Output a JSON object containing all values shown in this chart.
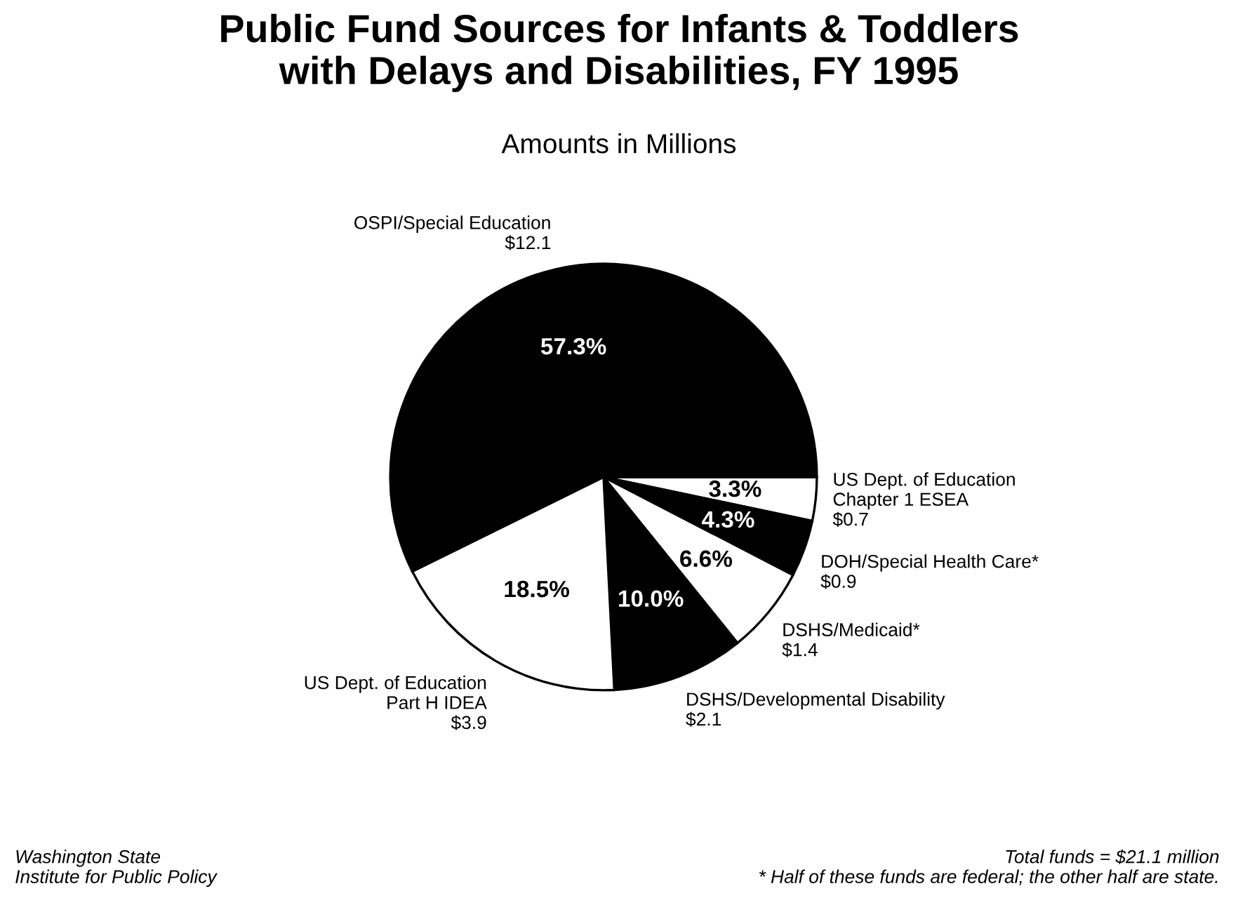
{
  "chart_data": {
    "type": "pie",
    "title": "Public Fund Sources for Infants & Toddlers\nwith Delays and Disabilities, FY 1995",
    "subtitle": "Amounts in Millions",
    "categories": [
      "US Dept. of Education\nChapter 1 ESEA\n$0.7",
      "DOH/Special Health Care*\n$0.9",
      "DSHS/Medicaid*\n$1.4",
      "DSHS/Developmental Disability\n$2.1",
      "US Dept. of Education\nPart H IDEA\n$3.9",
      "OSPI/Special Education\n$12.1"
    ],
    "values": [
      3.3,
      4.3,
      6.6,
      10.0,
      18.5,
      57.3
    ],
    "value_labels": [
      "3.3%",
      "4.3%",
      "6.6%",
      "10.0%",
      "18.5%",
      "57.3%"
    ],
    "colors": [
      "#ffffff",
      "#000000",
      "#ffffff",
      "#000000",
      "#ffffff",
      "#000000"
    ],
    "annotations": [
      "Washington State\nInstitute for Public Policy",
      "Total funds = $21.1 million\n* Half of these funds are federal; the other half are state."
    ],
    "legend": false
  }
}
